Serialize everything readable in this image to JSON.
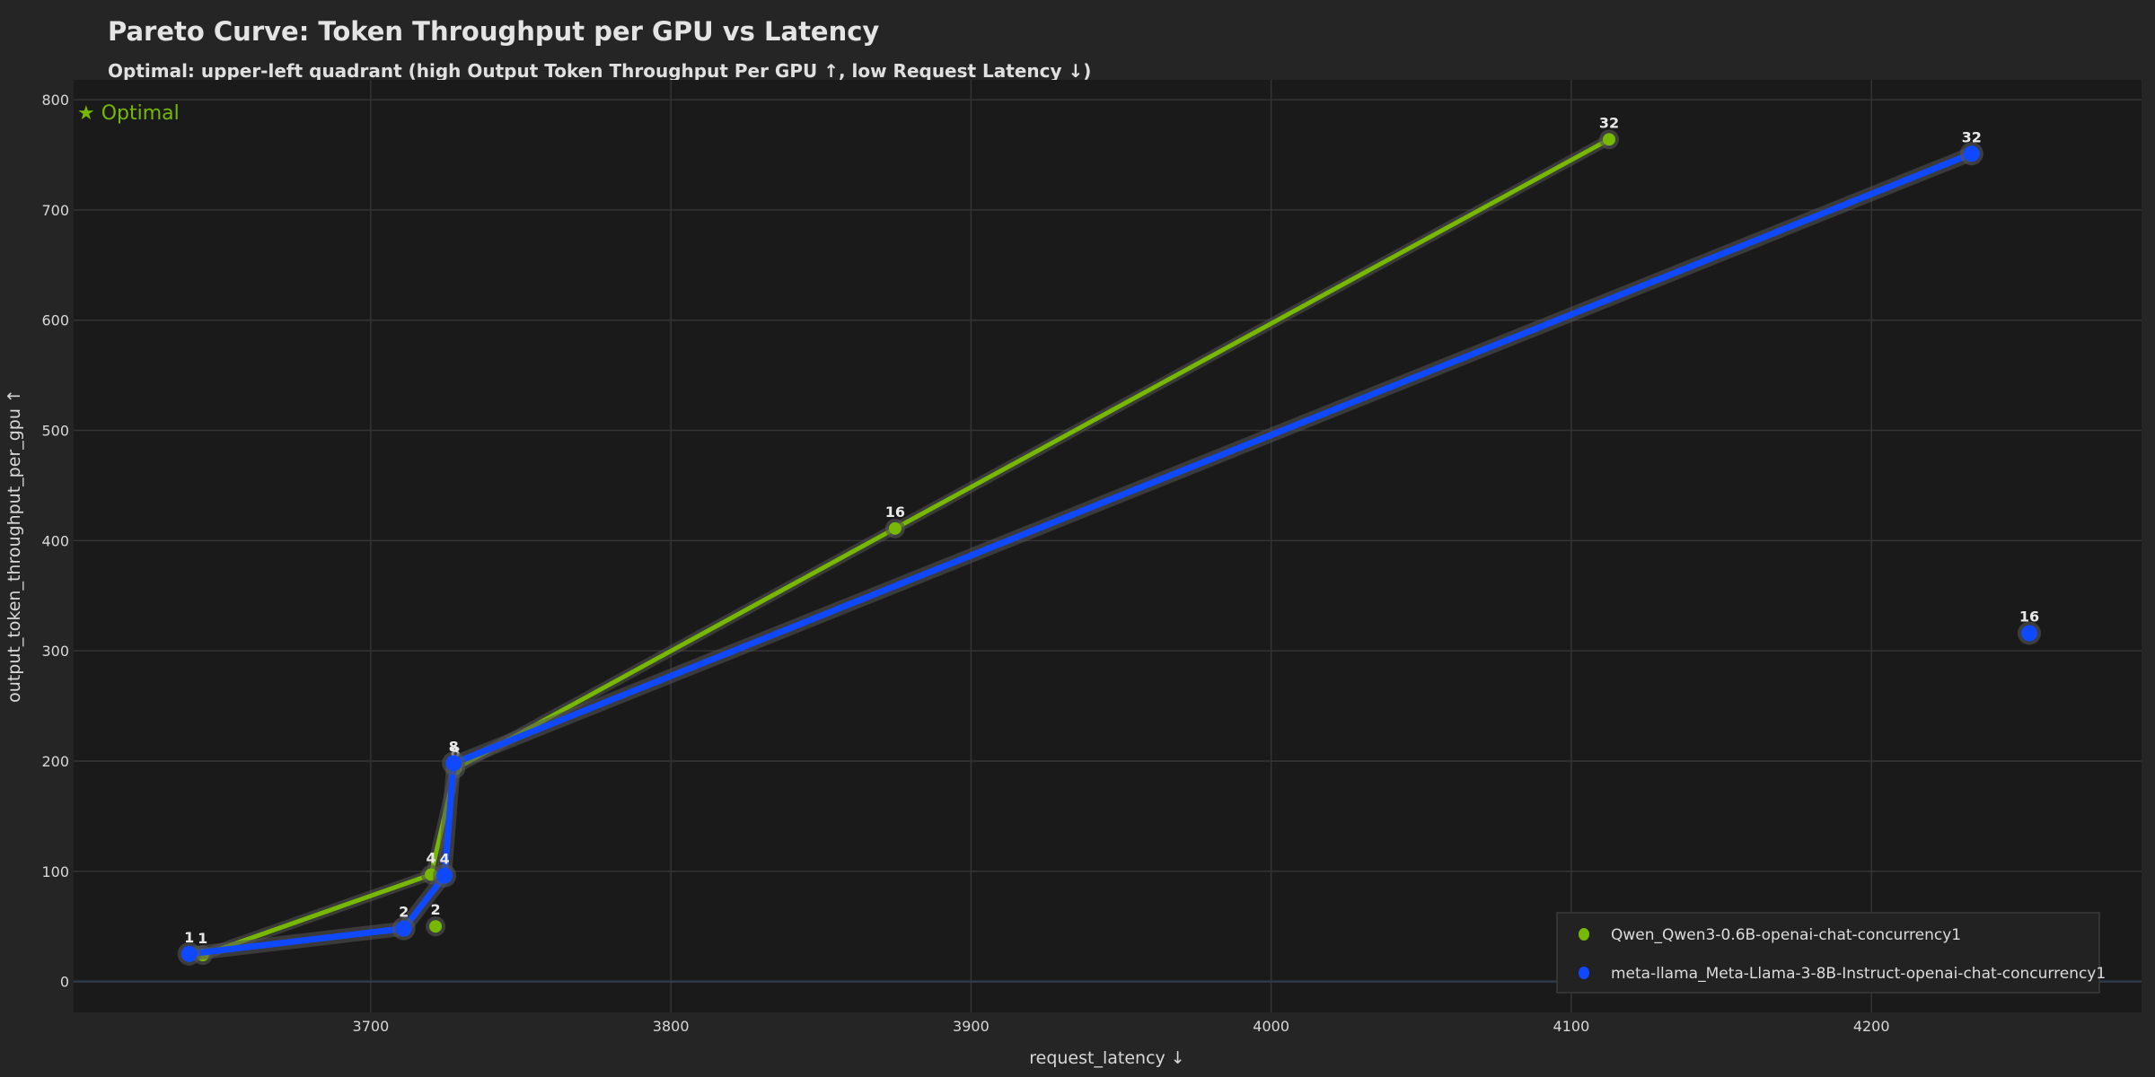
{
  "header": {
    "title": "Pareto Curve: Token Throughput per GPU vs Latency",
    "subtitle": "Optimal: upper-left quadrant (high Output Token Throughput Per GPU ↑, low Request Latency ↓)"
  },
  "annotation": "★ Optimal",
  "colors": {
    "qwen": "#76b900",
    "llama": "#0f49ff",
    "background": "#252525",
    "plot_bg": "#1a1a1a",
    "grid": "#3a3a3a"
  },
  "chart_data": {
    "type": "line",
    "title": "Pareto Curve: Token Throughput per GPU vs Latency",
    "subtitle": "Optimal: upper-left quadrant (high Output Token Throughput Per GPU ↑, low Request Latency ↓)",
    "xlabel": "request_latency ↓",
    "ylabel": "output_token_throughput_per_gpu ↑",
    "xlim": [
      3601,
      4290
    ],
    "ylim": [
      -28,
      818
    ],
    "xticks": [
      3700,
      3800,
      3900,
      4000,
      4100,
      4200
    ],
    "yticks": [
      0,
      100,
      200,
      300,
      400,
      500,
      600,
      700,
      800
    ],
    "grid": true,
    "legend_position": "lower right",
    "annotation": "★ Optimal",
    "series": [
      {
        "name": "Qwen_Qwen3-0.6B-openai-chat-concurrency1",
        "color": "#76b900",
        "points": [
          {
            "label": "1",
            "x": 3644,
            "y": 24
          },
          {
            "label": "2",
            "x": 3721.6,
            "y": 50
          },
          {
            "label": "4",
            "x": 3720.1,
            "y": 97
          },
          {
            "label": "8",
            "x": 3728.2,
            "y": 193
          },
          {
            "label": "16",
            "x": 3874.7,
            "y": 411
          },
          {
            "label": "32",
            "x": 4112.6,
            "y": 764
          }
        ],
        "pareto_path": [
          "1",
          "4",
          "8",
          "16",
          "32"
        ]
      },
      {
        "name": "meta-llama_Meta-Llama-3-8B-Instruct-openai-chat-concurrency1",
        "color": "#0f49ff",
        "points": [
          {
            "label": "1",
            "x": 3639.5,
            "y": 25
          },
          {
            "label": "2",
            "x": 3711,
            "y": 48
          },
          {
            "label": "4",
            "x": 3724.6,
            "y": 96
          },
          {
            "label": "8",
            "x": 3727.6,
            "y": 198
          },
          {
            "label": "16",
            "x": 4252.6,
            "y": 316
          },
          {
            "label": "32",
            "x": 4233.4,
            "y": 751
          }
        ],
        "pareto_path": [
          "1",
          "2",
          "4",
          "8",
          "32"
        ]
      }
    ]
  }
}
